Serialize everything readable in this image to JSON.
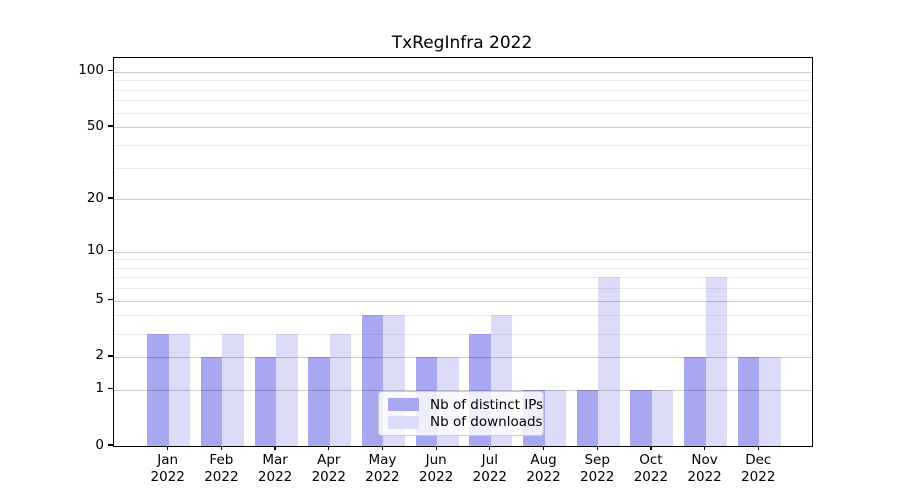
{
  "figure": {
    "title": "TxRegInfra 2022"
  },
  "chart_data": {
    "type": "bar",
    "title": "TxRegInfra 2022",
    "categories": [
      "Jan 2022",
      "Feb 2022",
      "Mar 2022",
      "Apr 2022",
      "May 2022",
      "Jun 2022",
      "Jul 2022",
      "Aug 2022",
      "Sep 2022",
      "Oct 2022",
      "Nov 2022",
      "Dec 2022"
    ],
    "x_tick_top": [
      "Jan",
      "Feb",
      "Mar",
      "Apr",
      "May",
      "Jun",
      "Jul",
      "Aug",
      "Sep",
      "Oct",
      "Nov",
      "Dec"
    ],
    "x_tick_bottom": "2022",
    "series": [
      {
        "name": "Nb of distinct IPs",
        "color": "#a8a8f2",
        "values": [
          3,
          2,
          2,
          2,
          4,
          2,
          3,
          1,
          1,
          1,
          2,
          2
        ]
      },
      {
        "name": "Nb of downloads",
        "color": "#dcdcf9",
        "values": [
          3,
          3,
          3,
          3,
          4,
          2,
          4,
          1,
          7,
          1,
          7,
          2
        ]
      }
    ],
    "y_axis": {
      "scale": "log1p",
      "ticks": [
        0,
        1,
        2,
        5,
        10,
        20,
        50,
        100
      ],
      "tick_labels": [
        "0",
        "1",
        "2",
        "5",
        "10",
        "20",
        "50",
        "100"
      ],
      "minor_gridlines": [
        3,
        4,
        6,
        7,
        8,
        9,
        30,
        40,
        60,
        70,
        80,
        90
      ],
      "ylim": [
        0,
        118
      ]
    },
    "legend": {
      "position": "lower center"
    },
    "grid": true,
    "colors": {
      "major_grid": "#cccccc",
      "minor_grid": "#ebebeb",
      "axis": "#000000",
      "background": "#ffffff"
    }
  }
}
